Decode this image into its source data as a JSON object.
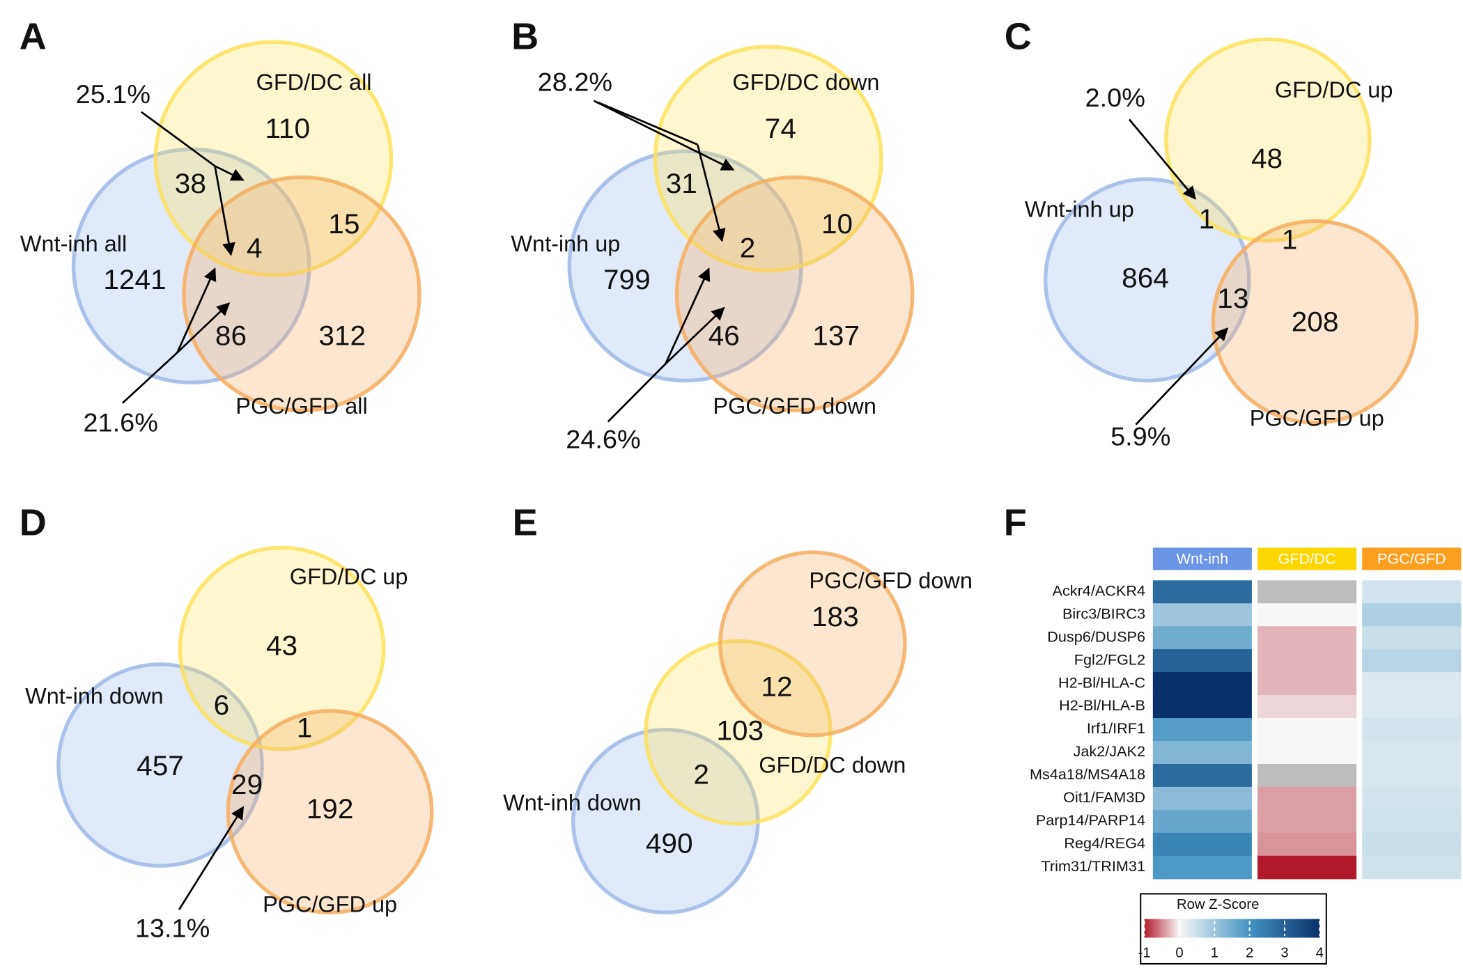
{
  "chart_data": [
    {
      "type": "venn",
      "panel": "A",
      "sets": [
        {
          "name": "Wnt-inh all",
          "color": "#9db8e8"
        },
        {
          "name": "GFD/DC all",
          "color": "#fde25a"
        },
        {
          "name": "PGC/GFD all",
          "color": "#f6ad5f"
        }
      ],
      "values": [
        110,
        38,
        15,
        4,
        1241,
        86,
        312
      ],
      "annotations": [
        "25.1%",
        "21.6%"
      ]
    },
    {
      "type": "venn",
      "panel": "B",
      "sets": [
        {
          "name": "Wnt-inh up",
          "color": "#9db8e8"
        },
        {
          "name": "GFD/DC down",
          "color": "#fde25a"
        },
        {
          "name": "PGC/GFD down",
          "color": "#f6ad5f"
        }
      ],
      "values": [
        74,
        31,
        10,
        2,
        799,
        46,
        137
      ],
      "annotations": [
        "28.2%",
        "24.6%"
      ]
    },
    {
      "type": "venn",
      "panel": "C",
      "sets": [
        {
          "name": "Wnt-inh up",
          "color": "#9db8e8"
        },
        {
          "name": "GFD/DC up",
          "color": "#fde25a"
        },
        {
          "name": "PGC/GFD up",
          "color": "#f6ad5f"
        }
      ],
      "values": [
        48,
        1,
        1,
        864,
        13,
        208
      ],
      "annotations": [
        "2.0%",
        "5.9%"
      ]
    },
    {
      "type": "venn",
      "panel": "D",
      "sets": [
        {
          "name": "Wnt-inh down",
          "color": "#9db8e8"
        },
        {
          "name": "GFD/DC up",
          "color": "#fde25a"
        },
        {
          "name": "PGC/GFD up",
          "color": "#f6ad5f"
        }
      ],
      "values": [
        43,
        6,
        1,
        457,
        29,
        192
      ],
      "annotations": [
        "13.1%"
      ]
    },
    {
      "type": "venn",
      "panel": "E",
      "sets": [
        {
          "name": "Wnt-inh down",
          "color": "#9db8e8"
        },
        {
          "name": "GFD/DC down",
          "color": "#fde25a"
        },
        {
          "name": "PGC/GFD down",
          "color": "#f6ad5f"
        }
      ],
      "values": [
        183,
        12,
        103,
        2,
        490
      ],
      "annotations": []
    },
    {
      "type": "heatmap",
      "panel": "F",
      "columns": [
        "Wnt-inh",
        "GFD/DC",
        "PGC/GFD"
      ],
      "column_colors": [
        "#6b96e6",
        "#ffd700",
        "#ff9f20"
      ],
      "rows": [
        "Ackr4/ACKR4",
        "Birc3/BIRC3",
        "Dusp6/DUSP6",
        "Fgl2/FGL2",
        "H2-Bl/HLA-C",
        "H2-Bl/HLA-B",
        "Irf1/IRF1",
        "Jak2/JAK2",
        "Ms4a18/MS4A18",
        "Oit1/FAM3D",
        "Parp14/PARP14",
        "Reg4/REG4",
        "Trim31/TRIM31"
      ],
      "values": [
        [
          2.8,
          null,
          0.4
        ],
        [
          1.0,
          0.0,
          0.8
        ],
        [
          1.5,
          -0.3,
          0.5
        ],
        [
          3.0,
          -0.3,
          0.7
        ],
        [
          4.0,
          -0.3,
          0.3
        ],
        [
          4.0,
          -0.15,
          0.3
        ],
        [
          1.8,
          0.0,
          0.4
        ],
        [
          1.3,
          0.0,
          0.35
        ],
        [
          2.8,
          null,
          0.35
        ],
        [
          1.2,
          -0.4,
          0.4
        ],
        [
          1.6,
          -0.4,
          0.45
        ],
        [
          2.3,
          -0.45,
          0.5
        ],
        [
          1.9,
          -1.0,
          0.45
        ]
      ],
      "na_color": "#bdbdbd",
      "colors": [
        "#b2182b",
        "#f7f7f7",
        "#4393c3",
        "#08306b"
      ],
      "legend_title": "Row Z-Score",
      "zlim": [
        -1,
        4
      ],
      "zticks": [
        -1,
        0,
        1,
        2,
        3,
        4
      ]
    }
  ]
}
